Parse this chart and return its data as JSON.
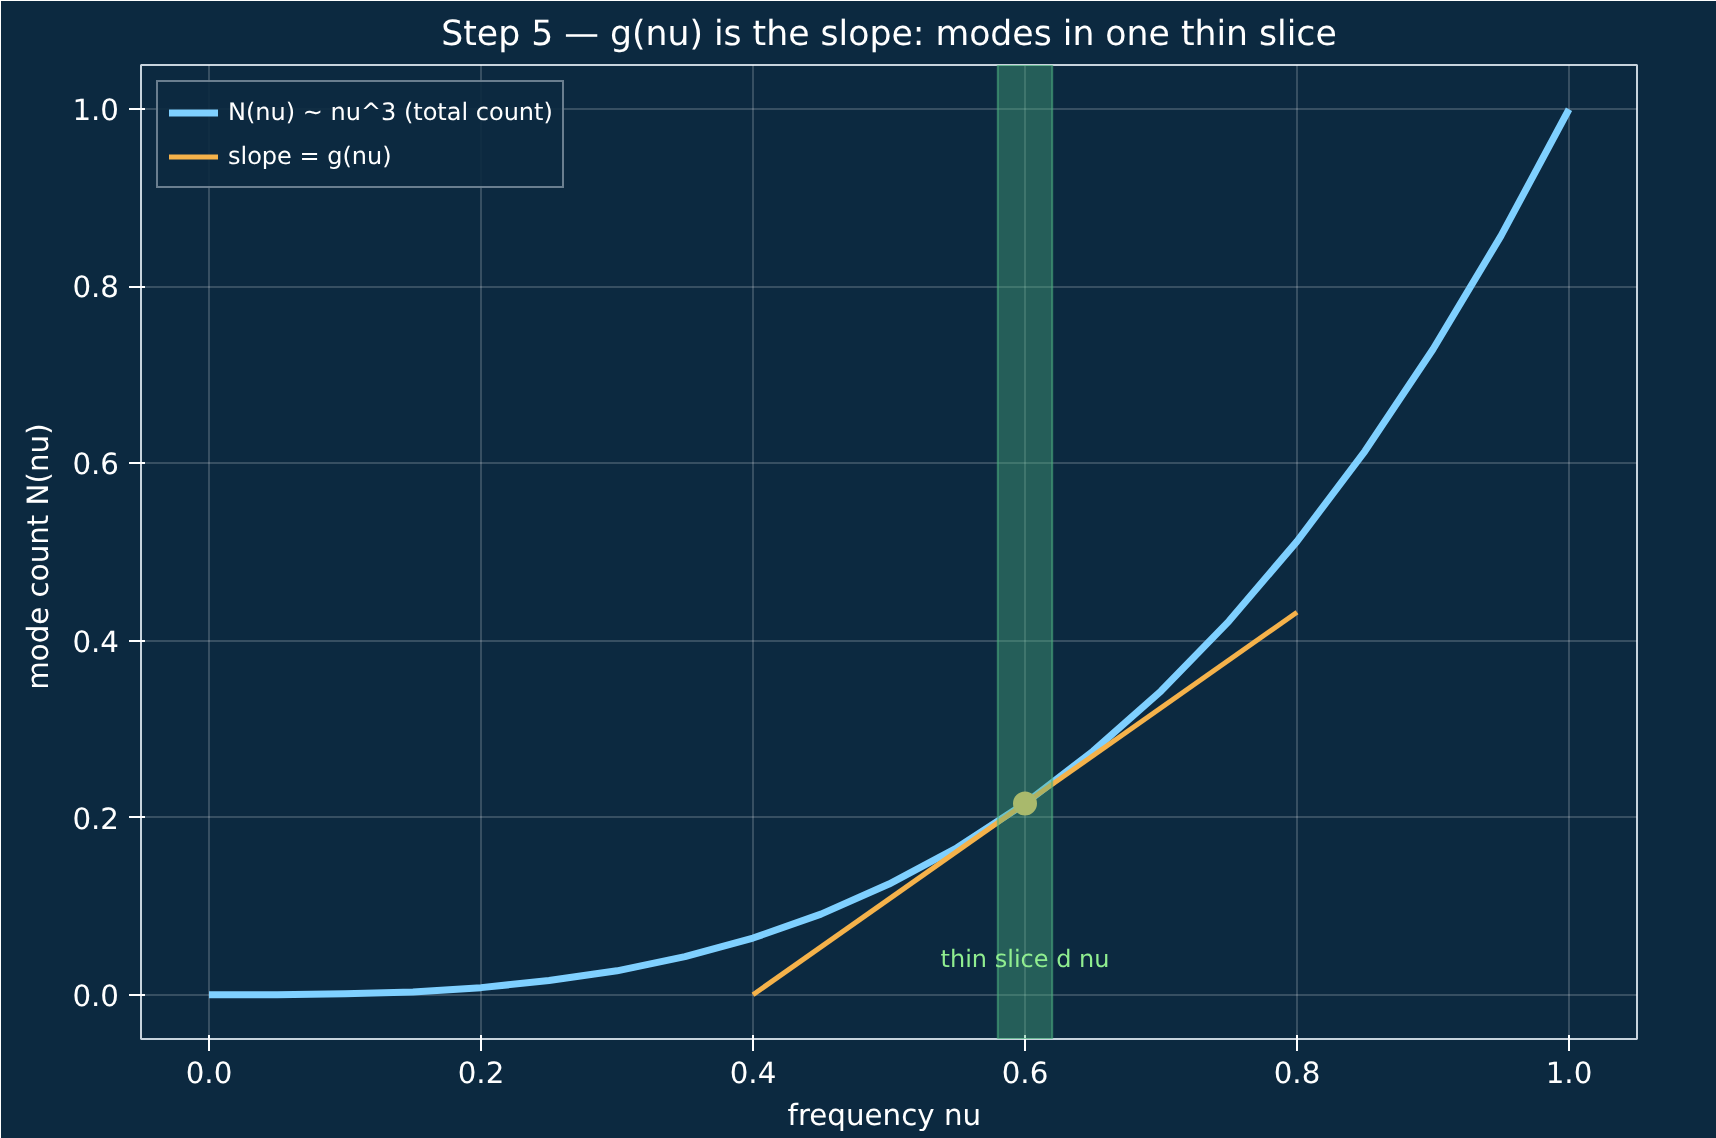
{
  "chart_data": {
    "type": "line",
    "title": "Step 5 — g(nu) is the slope: modes in one thin slice",
    "xlabel": "frequency  nu",
    "ylabel": "mode count  N(nu)",
    "xlim": [
      -0.05,
      1.05
    ],
    "ylim": [
      -0.05,
      1.05
    ],
    "xticks": [
      {
        "value": 0,
        "label": "0.0"
      },
      {
        "value": 0.2,
        "label": "0.2"
      },
      {
        "value": 0.4,
        "label": "0.4"
      },
      {
        "value": 0.6,
        "label": "0.6"
      },
      {
        "value": 0.8,
        "label": "0.8"
      },
      {
        "value": 1,
        "label": "1.0"
      }
    ],
    "yticks": [
      {
        "value": 0,
        "label": "0.0"
      },
      {
        "value": 0.2,
        "label": "0.2"
      },
      {
        "value": 0.4,
        "label": "0.4"
      },
      {
        "value": 0.6,
        "label": "0.6"
      },
      {
        "value": 0.8,
        "label": "0.8"
      },
      {
        "value": 1,
        "label": "1.0"
      }
    ],
    "grid": true,
    "legend": "top left",
    "series": [
      {
        "name": "N(nu) ~ nu^3 (total count)",
        "color": "#7fd0ff",
        "x": [
          0,
          0.05,
          0.1,
          0.15,
          0.2,
          0.25,
          0.3,
          0.35,
          0.4,
          0.45,
          0.5,
          0.55,
          0.6,
          0.65,
          0.7,
          0.75,
          0.8,
          0.85,
          0.9,
          0.95,
          1.0
        ],
        "values": [
          0,
          0,
          0.001,
          0.003,
          0.008,
          0.016,
          0.027,
          0.043,
          0.064,
          0.091,
          0.125,
          0.166,
          0.216,
          0.275,
          0.343,
          0.422,
          0.512,
          0.614,
          0.729,
          0.857,
          1.0
        ]
      },
      {
        "name": "slope = g(nu)",
        "color": "#f5b24a",
        "x": [
          0.4,
          0.8
        ],
        "values": [
          0,
          0.432
        ]
      },
      {
        "type": "scatter",
        "color": "#e8c060",
        "marker": "circle",
        "x": [
          0.6
        ],
        "values": [
          0.216
        ]
      }
    ],
    "bands": [
      {
        "axis": "x",
        "from": 0.58,
        "to": 0.62,
        "color": "#4caf7f"
      }
    ],
    "annotations": [
      "thin slice d nu"
    ]
  }
}
